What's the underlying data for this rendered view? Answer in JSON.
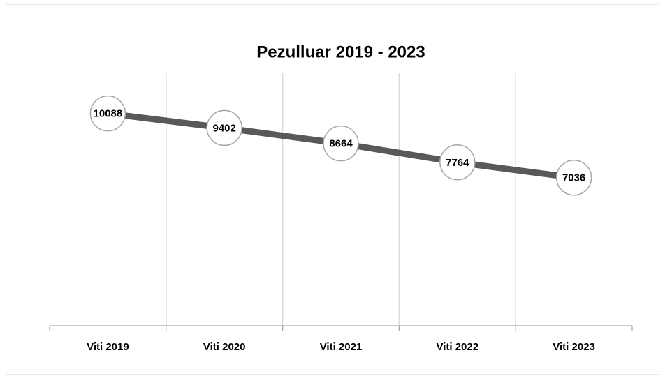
{
  "chart_data": {
    "type": "line",
    "title": "Pezulluar 2019 - 2023",
    "categories": [
      "Viti 2019",
      "Viti 2020",
      "Viti 2021",
      "Viti 2022",
      "Viti 2023"
    ],
    "values": [
      10088,
      9402,
      8664,
      7764,
      7036
    ],
    "color": "#595959",
    "ylim": [
      0,
      12000
    ],
    "grid": true
  }
}
